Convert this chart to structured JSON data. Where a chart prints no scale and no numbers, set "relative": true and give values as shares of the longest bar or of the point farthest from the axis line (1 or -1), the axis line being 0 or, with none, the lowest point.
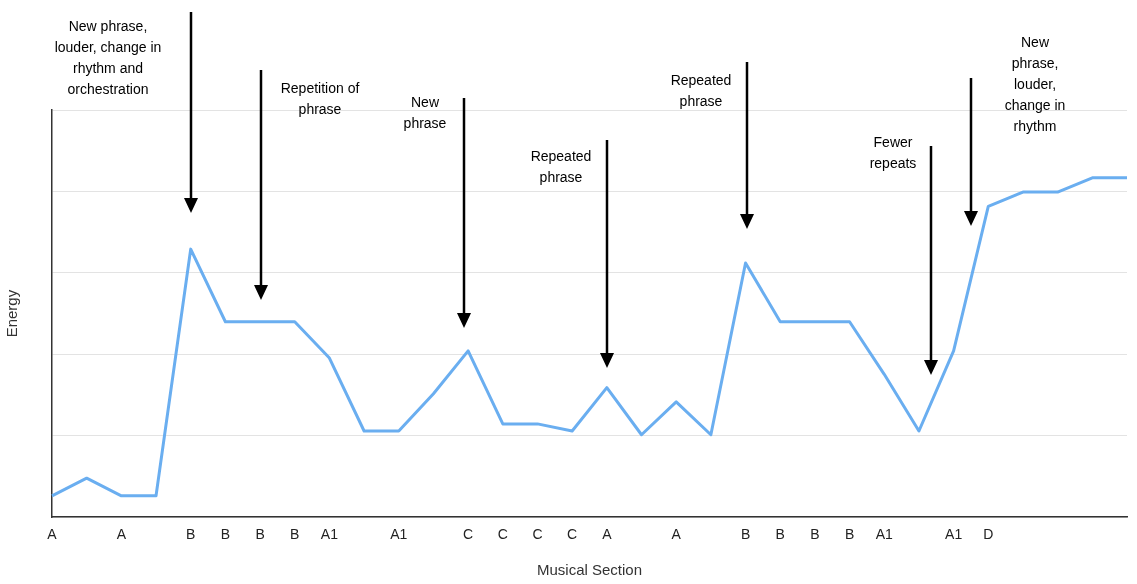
{
  "chart_data": {
    "type": "line",
    "relative": true,
    "xlabel": "Musical Section",
    "ylabel": "Energy",
    "grid": "y",
    "marker": "none",
    "line_style": "solid",
    "legend": false,
    "categories": [
      "A",
      null,
      "A",
      null,
      "B",
      "B",
      "B",
      "B",
      "A1",
      null,
      "A1",
      null,
      "C",
      "C",
      "C",
      "C",
      "A",
      null,
      "A",
      null,
      "B",
      "B",
      "B",
      "B",
      "A1",
      null,
      "A1",
      "D",
      null,
      null,
      null,
      null
    ],
    "series": [
      {
        "color": "#6aaef0",
        "values": [
          0.063,
          0.115,
          0.063,
          0.063,
          0.79,
          0.576,
          0.576,
          0.576,
          0.469,
          0.254,
          0.254,
          0.364,
          0.49,
          0.275,
          0.275,
          0.254,
          0.382,
          0.243,
          0.34,
          0.243,
          0.749,
          0.576,
          0.576,
          0.576,
          0.421,
          0.254,
          0.49,
          0.916,
          0.958,
          0.958,
          1,
          1
        ]
      }
    ],
    "annotations": [
      "New phrase, louder, change in rhythm and orchestration",
      "Repetition of phrase",
      "New phrase",
      "Repeated phrase",
      "Repeated phrase",
      "Fewer repeats",
      "New phrase, louder, change in rhythm"
    ]
  }
}
